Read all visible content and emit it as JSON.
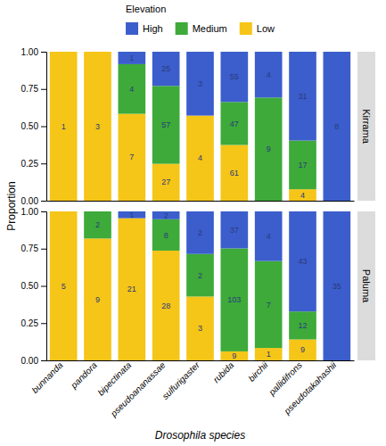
{
  "chart_data": [
    {
      "type": "bar",
      "title": "Kirrama",
      "stacked": true,
      "legend": "top",
      "tick_labels": "y",
      "legend_title": "Elevation",
      "ylabel": "Proportion",
      "categories": [
        null,
        null,
        null,
        null,
        null,
        null,
        null,
        null,
        null
      ],
      "series": [
        {
          "name": "Low",
          "color": "#F5C518",
          "values": [
            1,
            1,
            0.583333,
            0.247706,
            0.571429,
            0.374233,
            0,
            0.076923,
            0
          ],
          "counts": [
            1,
            3,
            7,
            27,
            4,
            61,
            0,
            4,
            0
          ]
        },
        {
          "name": "Medium",
          "color": "#3DAA3A",
          "values": [
            0,
            0,
            0.333333,
            0.522936,
            0,
            0.288344,
            0.692308,
            0.326923,
            0
          ],
          "counts": [
            0,
            0,
            4,
            57,
            0,
            47,
            9,
            17,
            0
          ]
        },
        {
          "name": "High",
          "color": "#3B5ECC",
          "values": [
            0,
            0,
            0.083334,
            0.229358,
            0.428571,
            0.337423,
            0.307692,
            0.596154,
            1
          ],
          "counts": [
            0,
            0,
            1,
            25,
            3,
            55,
            4,
            31,
            8
          ]
        }
      ],
      "ylim": [
        0,
        1
      ],
      "yticks": [
        {
          "value": 0,
          "label": "0.00"
        },
        {
          "value": 0.25,
          "label": "0.25"
        },
        {
          "value": 0.5,
          "label": "0.50"
        },
        {
          "value": 0.75,
          "label": "0.75"
        },
        {
          "value": 1,
          "label": "1.00"
        }
      ]
    },
    {
      "type": "bar",
      "title": "Paluma",
      "stacked": true,
      "xlabel": "Drosophila species",
      "categories": [
        "bunnanda",
        "pandora",
        "bipectinata",
        "pseudoananassae",
        "sulfurigaster",
        "rubida",
        "birchii",
        "pallidifrons",
        "pseudotakahashii"
      ],
      "series": [
        {
          "name": "Low",
          "color": "#F5C518",
          "values": [
            1,
            0.818182,
            0.954545,
            0.736842,
            0.428571,
            0.060403,
            0.083333,
            0.140625,
            0
          ],
          "counts": [
            5,
            9,
            21,
            28,
            3,
            9,
            1,
            9,
            0
          ]
        },
        {
          "name": "Medium",
          "color": "#3DAA3A",
          "values": [
            0,
            0.181818,
            0,
            0.210526,
            0.285714,
            0.691275,
            0.583333,
            0.1875,
            0
          ],
          "counts": [
            0,
            2,
            0,
            8,
            2,
            103,
            7,
            12,
            0
          ]
        },
        {
          "name": "High",
          "color": "#3B5ECC",
          "values": [
            0,
            0,
            0.045455,
            0.052632,
            0.285715,
            0.248322,
            0.333334,
            0.671875,
            1
          ],
          "counts": [
            0,
            0,
            1,
            2,
            2,
            37,
            4,
            43,
            35
          ]
        }
      ],
      "ylim": [
        0,
        1
      ],
      "yticks": [
        {
          "value": 0,
          "label": "0.00"
        },
        {
          "value": 0.25,
          "label": "0.25"
        },
        {
          "value": 0.5,
          "label": "0.50"
        },
        {
          "value": 0.75,
          "label": "0.75"
        },
        {
          "value": 1,
          "label": "1.00"
        }
      ]
    }
  ]
}
